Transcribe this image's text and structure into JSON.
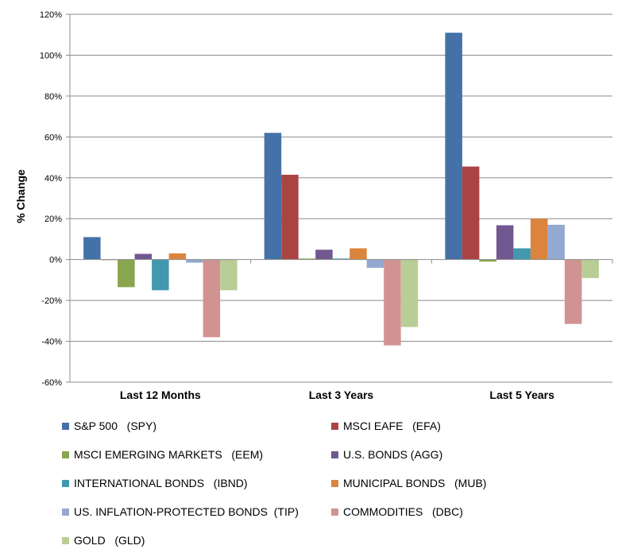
{
  "chart_data": {
    "type": "bar",
    "ylabel": "% Change",
    "xlabel": "",
    "ylim": [
      -60,
      120
    ],
    "ytick_step": 20,
    "ytick_labels": [
      "120%",
      "100%",
      "80%",
      "60%",
      "40%",
      "20%",
      "0%",
      "-20%",
      "-40%",
      "-60%"
    ],
    "categories": [
      "Last 12 Months",
      "Last 3 Years",
      "Last 5 Years"
    ],
    "grid": true,
    "legend_position": "bottom",
    "series": [
      {
        "name": "S&P 500   (SPY)",
        "color": "#4472A8",
        "values": [
          11,
          62,
          111
        ]
      },
      {
        "name": "MSCI EAFE   (EFA)",
        "color": "#AA4442",
        "values": [
          0,
          41.5,
          45.5
        ]
      },
      {
        "name": "MSCI EMERGING MARKETS   (EEM)",
        "color": "#89A54E",
        "values": [
          -13.5,
          0.5,
          -1
        ]
      },
      {
        "name": "U.S. BONDS (AGG)",
        "color": "#71588F",
        "values": [
          2.8,
          4.8,
          16.8
        ]
      },
      {
        "name": "INTERNATIONAL BONDS   (IBND)",
        "color": "#4198AF",
        "values": [
          -15,
          0.5,
          5.5
        ]
      },
      {
        "name": "MUNICIPAL BONDS   (MUB)",
        "color": "#DB843D",
        "values": [
          3,
          5.5,
          20
        ]
      },
      {
        "name": "US. INFLATION-PROTECTED BONDS  (TIP)",
        "color": "#93A9CF",
        "values": [
          -1.5,
          -4,
          17
        ]
      },
      {
        "name": "COMMODITIES   (DBC)",
        "color": "#D19392",
        "values": [
          -38,
          -42,
          -31.5
        ]
      },
      {
        "name": "GOLD   (GLD)",
        "color": "#B9CD96",
        "values": [
          -15,
          -33,
          -9
        ]
      }
    ]
  }
}
